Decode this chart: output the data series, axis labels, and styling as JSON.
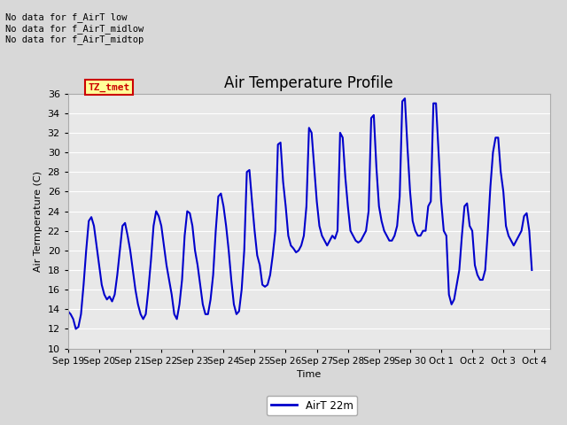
{
  "title": "Air Temperature Profile",
  "ylabel": "Air Termperature (C)",
  "xlabel": "Time",
  "legend_label": "AirT 22m",
  "ylim": [
    10,
    36
  ],
  "yticks": [
    10,
    12,
    14,
    16,
    18,
    20,
    22,
    24,
    26,
    28,
    30,
    32,
    34,
    36
  ],
  "line_color": "#0000cc",
  "line_width": 1.5,
  "fig_facecolor": "#d8d8d8",
  "axes_facecolor": "#e8e8e8",
  "title_fontsize": 12,
  "annotation_text": "No data for f_AirT low\nNo data for f_AirT_midlow\nNo data for f_AirT_midtop",
  "tz_label": "TZ_tmet",
  "grid_color": "#ffffff",
  "text_color": "#000000",
  "data": {
    "times_hours_from_sep19": [
      0,
      2,
      4,
      6,
      8,
      10,
      12,
      14,
      16,
      18,
      20,
      22,
      24,
      26,
      28,
      30,
      32,
      34,
      36,
      38,
      40,
      42,
      44,
      46,
      48,
      50,
      52,
      54,
      56,
      58,
      60,
      62,
      64,
      66,
      68,
      70,
      72,
      74,
      76,
      78,
      80,
      82,
      84,
      86,
      88,
      90,
      92,
      94,
      96,
      98,
      100,
      102,
      104,
      106,
      108,
      110,
      112,
      114,
      116,
      118,
      120,
      122,
      124,
      126,
      128,
      130,
      132,
      134,
      136,
      138,
      140,
      142,
      144,
      146,
      148,
      150,
      152,
      154,
      156,
      158,
      160,
      162,
      164,
      166,
      168,
      170,
      172,
      174,
      176,
      178,
      180,
      182,
      184,
      186,
      188,
      190,
      192,
      194,
      196,
      198,
      200,
      202,
      204,
      206,
      208,
      210,
      212,
      214,
      216,
      218,
      220,
      222,
      224,
      226,
      228,
      230,
      232,
      234,
      236,
      238,
      240,
      242,
      244,
      246,
      248,
      250,
      252,
      254,
      256,
      258,
      260,
      262,
      264,
      266,
      268,
      270,
      272,
      274,
      276,
      278,
      280,
      282,
      284,
      286,
      288,
      290,
      292,
      294,
      296,
      298,
      300,
      302,
      304,
      306,
      308,
      310,
      312,
      314,
      316,
      318,
      320,
      322,
      324,
      326,
      328,
      330,
      332,
      334,
      336,
      338,
      340,
      342,
      344,
      346,
      348,
      350,
      352,
      354,
      356,
      358
    ],
    "temperatures": [
      13.8,
      13.5,
      13.0,
      12.0,
      12.2,
      13.5,
      16.5,
      20.0,
      23.0,
      23.4,
      22.5,
      20.5,
      18.5,
      16.5,
      15.5,
      15.0,
      15.3,
      14.8,
      15.5,
      17.5,
      20.0,
      22.5,
      22.8,
      21.5,
      20.0,
      18.0,
      16.0,
      14.5,
      13.5,
      13.0,
      13.5,
      16.0,
      19.0,
      22.5,
      24.0,
      23.5,
      22.5,
      20.5,
      18.5,
      17.0,
      15.5,
      13.5,
      13.0,
      14.5,
      17.0,
      21.5,
      24.0,
      23.8,
      22.5,
      20.0,
      18.5,
      16.5,
      14.5,
      13.5,
      13.5,
      15.0,
      17.5,
      22.0,
      25.5,
      25.8,
      24.5,
      22.5,
      20.0,
      17.0,
      14.5,
      13.5,
      13.8,
      16.0,
      20.0,
      28.0,
      28.2,
      25.0,
      22.0,
      19.5,
      18.5,
      16.5,
      16.3,
      16.5,
      17.5,
      19.5,
      22.0,
      30.8,
      31.0,
      27.0,
      24.5,
      21.5,
      20.5,
      20.2,
      19.8,
      20.0,
      20.5,
      21.5,
      24.5,
      32.5,
      32.0,
      28.5,
      25.0,
      22.5,
      21.5,
      21.0,
      20.5,
      21.0,
      21.5,
      21.2,
      22.0,
      32.0,
      31.5,
      27.5,
      24.5,
      22.0,
      21.5,
      21.0,
      20.8,
      21.0,
      21.5,
      22.0,
      24.0,
      33.5,
      33.8,
      28.5,
      24.5,
      23.0,
      22.0,
      21.5,
      21.0,
      21.0,
      21.5,
      22.5,
      25.5,
      35.2,
      35.5,
      30.5,
      26.0,
      23.0,
      22.0,
      21.5,
      21.5,
      22.0,
      22.0,
      24.5,
      25.0,
      35.0,
      35.0,
      30.0,
      25.0,
      22.0,
      21.5,
      15.5,
      14.5,
      15.0,
      16.5,
      18.0,
      21.5,
      24.5,
      24.8,
      22.5,
      22.0,
      18.5,
      17.5,
      17.0,
      17.0,
      18.0,
      22.0,
      26.5,
      30.0,
      31.5,
      31.5,
      28.0,
      26.0,
      22.5,
      21.5,
      21.0,
      20.5,
      21.0,
      21.5,
      22.0,
      23.5,
      23.8,
      22.0,
      18.0
    ]
  }
}
